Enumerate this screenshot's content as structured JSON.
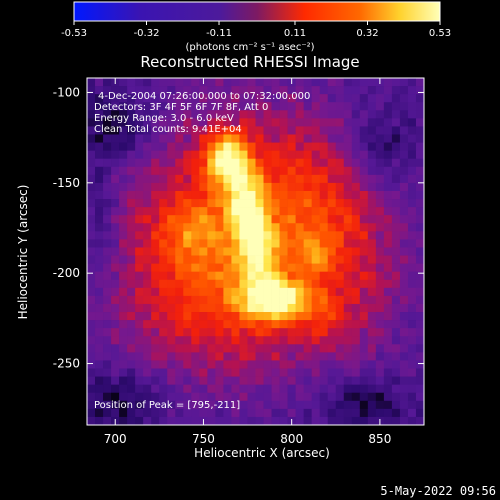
{
  "chart_data": {
    "type": "heatmap",
    "title": "Reconstructed RHESSI Image",
    "xlabel": "Heliocentric X (arcsec)",
    "ylabel": "Heliocentric Y (arcsec)",
    "xlim": [
      684,
      875
    ],
    "ylim": [
      -284,
      -92
    ],
    "xticks": [
      "700",
      "750",
      "800",
      "850"
    ],
    "xtick_values": [
      700,
      750,
      800,
      850
    ],
    "yticks": [
      "-100",
      "-150",
      "-200",
      "-250"
    ],
    "ytick_values": [
      -100,
      -150,
      -200,
      -250
    ],
    "colorbar": {
      "min": -0.53,
      "max": 0.53,
      "tick_labels": [
        "-0.53",
        "-0.32",
        "-0.11",
        "0.11",
        "0.32",
        "0.53"
      ],
      "tick_values": [
        -0.53,
        -0.32,
        -0.11,
        0.11,
        0.32,
        0.53
      ],
      "unit_label": "(photons cm⁻² s⁻¹ asec⁻²)"
    },
    "annotations": {
      "time_range": "4-Dec-2004 07:26:00.000 to 07:32:00.000",
      "detectors": "Detectors: 3F 4F 5F 6F 7F 8F, Att 0",
      "energy": "Energy Range: 3.0 - 6.0 keV",
      "clean": "Clean     Total counts: 9.41E+04",
      "peak": "Position of Peak = [795,-211]"
    },
    "peak": [
      795,
      -211
    ],
    "colors": {
      "low": "#0018ff",
      "background": "#5a1696",
      "mid": "#ff2a00",
      "high": "#ffffb8",
      "ridge": "#ffe84a"
    }
  },
  "footer": {
    "date": "5-May-2022 09:56"
  }
}
